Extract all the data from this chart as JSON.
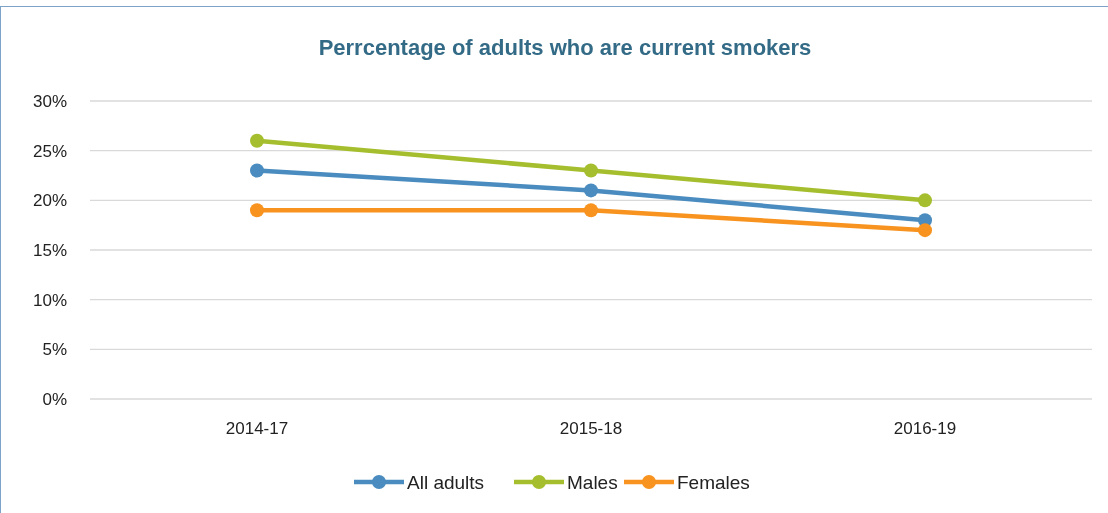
{
  "chart_data": {
    "type": "line",
    "title": "Perrcentage of adults who are current smokers",
    "categories": [
      "2014-17",
      "2015-18",
      "2016-19"
    ],
    "series": [
      {
        "name": "All adults",
        "color": "#4a8cbf",
        "values": [
          23,
          21,
          18
        ]
      },
      {
        "name": "Males",
        "color": "#a5be2e",
        "values": [
          26,
          23,
          20
        ]
      },
      {
        "name": "Females",
        "color": "#f7931e",
        "values": [
          19,
          19,
          17
        ]
      }
    ],
    "ylim": [
      0,
      30
    ],
    "yticks": [
      {
        "value": 0,
        "label": "0%"
      },
      {
        "value": 5,
        "label": "5%"
      },
      {
        "value": 10,
        "label": "10%"
      },
      {
        "value": 15,
        "label": "15%"
      },
      {
        "value": 20,
        "label": "20%"
      },
      {
        "value": 25,
        "label": "25%"
      },
      {
        "value": 30,
        "label": "30%"
      }
    ],
    "grid": "y",
    "legend": "bottom",
    "marker": "circle",
    "line_style": "solid"
  }
}
